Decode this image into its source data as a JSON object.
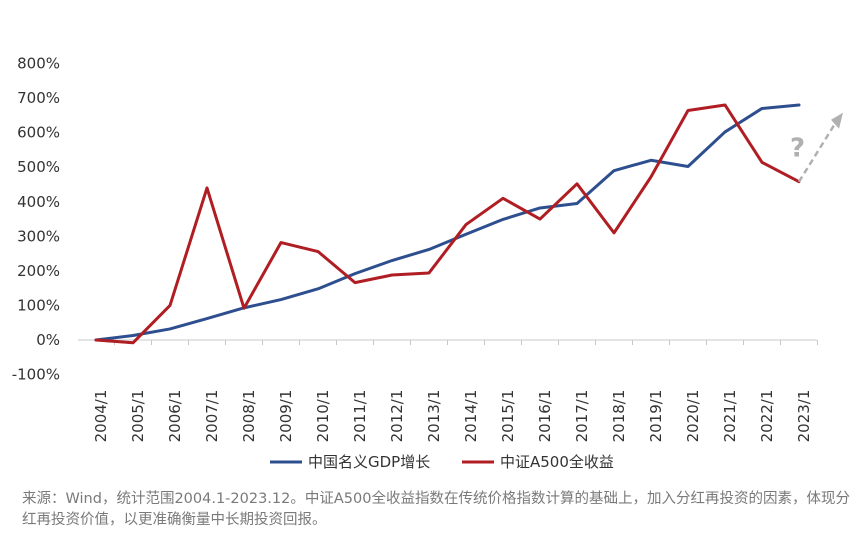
{
  "chart_data": {
    "type": "line",
    "categories": [
      "2004/1",
      "2005/1",
      "2006/1",
      "2007/1",
      "2008/1",
      "2009/1",
      "2010/1",
      "2011/1",
      "2012/1",
      "2013/1",
      "2014/1",
      "2015/1",
      "2016/1",
      "2017/1",
      "2018/1",
      "2019/1",
      "2020/1",
      "2021/1",
      "2022/1",
      "2023/1"
    ],
    "series": [
      {
        "name": "中国名义GDP增长",
        "color": "#2e4f8f",
        "values": [
          0,
          13,
          32,
          62,
          93,
          117,
          148,
          192,
          230,
          262,
          306,
          349,
          382,
          395,
          490,
          520,
          502,
          602,
          670,
          680
        ]
      },
      {
        "name": "中证A500全收益",
        "color": "#b01d22",
        "values": [
          0,
          -8,
          100,
          440,
          92,
          282,
          256,
          166,
          188,
          194,
          334,
          410,
          350,
          452,
          310,
          472,
          664,
          680,
          514,
          458
        ]
      }
    ],
    "yticks": [
      "800%",
      "700%",
      "600%",
      "500%",
      "400%",
      "300%",
      "200%",
      "100%",
      "0%",
      "-100%"
    ],
    "ylim": [
      -100,
      800
    ],
    "grid": false,
    "legend_position": "bottom",
    "annotation": {
      "text": "?",
      "color": "#b0b0b0",
      "arrow": "dashed-up-right"
    }
  },
  "footnote": "来源：Wind，统计范围2004.1-2023.12。中证A500全收益指数在传统价格指数计算的基础上，加入分红再投资的因素，体现分红再投资价值，以更准确衡量中长期投资回报。"
}
